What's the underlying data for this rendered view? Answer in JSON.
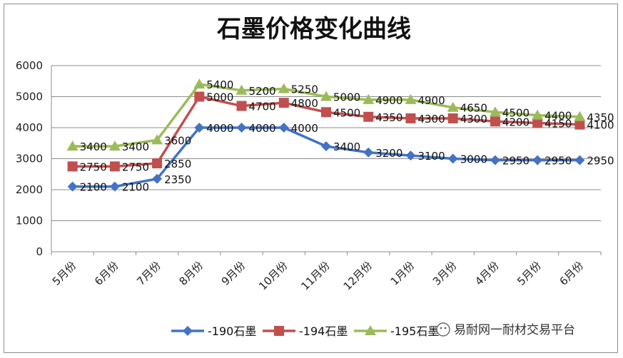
{
  "chart_data": {
    "type": "line",
    "title": "石墨价格变化曲线",
    "categories": [
      "5月份",
      "6月份",
      "7月份",
      "8月份",
      "9月份",
      "10月份",
      "11月份",
      "12月份",
      "1月份",
      "3月份",
      "4月份",
      "5月份",
      "6月份"
    ],
    "ylim": [
      0,
      6000
    ],
    "yticks": [
      0,
      1000,
      2000,
      3000,
      4000,
      5000,
      6000
    ],
    "grid": true,
    "legend_position": "bottom",
    "series": [
      {
        "name": "-190石墨",
        "color": "#4472c4",
        "marker": "diamond",
        "values": [
          2100,
          2100,
          2350,
          4000,
          4000,
          4000,
          3400,
          3200,
          3100,
          3000,
          2950,
          2950,
          2950
        ],
        "labels": [
          "2100",
          "2100",
          "2350",
          "4000",
          "4000",
          "4000",
          "3400",
          "3200",
          "3100",
          "3000",
          "2950",
          "2950",
          "2950"
        ]
      },
      {
        "name": "-194石墨",
        "color": "#c0504d",
        "marker": "square",
        "values": [
          2750,
          2750,
          2850,
          5000,
          4700,
          4800,
          4500,
          4350,
          4300,
          4300,
          4200,
          4150,
          4100
        ],
        "labels": [
          "2750",
          "2750",
          "2850",
          "5000",
          "4700",
          "4800",
          "4500",
          "4350",
          "4300",
          "4300",
          "4200",
          "4150",
          "4100"
        ]
      },
      {
        "name": "-195石墨",
        "color": "#9bbb59",
        "marker": "triangle",
        "values": [
          3400,
          3400,
          3600,
          5400,
          5200,
          5250,
          5000,
          4900,
          4900,
          4650,
          4500,
          4400,
          4350
        ],
        "labels": [
          "3400",
          "3400",
          "3600",
          "5400",
          "5200",
          "5250",
          "5000",
          "4900",
          "4900",
          "4650",
          "4500",
          "4400",
          "4350"
        ]
      }
    ]
  },
  "watermark": {
    "text": "易耐网一耐材交易平台",
    "icon": "wechat-icon"
  }
}
